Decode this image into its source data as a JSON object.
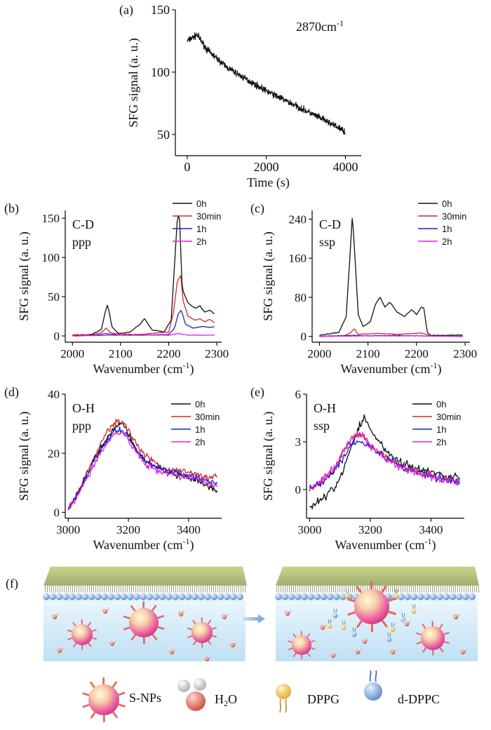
{
  "panels": [
    {
      "id": "a",
      "label": "(a)",
      "type": "line",
      "annotation": "2870cm-1",
      "xlabel": "Time (s)",
      "ylabel": "SFG signal (a. u.)",
      "xlim": [
        -300,
        4400
      ],
      "ylim": [
        33,
        150
      ],
      "xticks": [
        0,
        2000,
        4000
      ],
      "yticks": [
        50,
        100,
        150
      ],
      "series": [
        {
          "color": "#111111",
          "x": [
            0,
            250,
            500,
            1000,
            1500,
            2000,
            2500,
            3000,
            3500,
            3900,
            4000
          ],
          "y": [
            125,
            130,
            118,
            104,
            94,
            85,
            77,
            69,
            61,
            54,
            52
          ]
        }
      ]
    },
    {
      "id": "b",
      "label": "(b)",
      "type": "line",
      "annotation": [
        "C-D",
        "ppp"
      ],
      "xlabel": "Wavenumber (cm-1)",
      "ylabel": "SFG signal (a. u.)",
      "xlim": [
        1985,
        2310
      ],
      "ylim": [
        -8,
        160
      ],
      "xticks": [
        2000,
        2100,
        2200,
        2300
      ],
      "yticks": [
        0,
        50,
        100,
        150
      ],
      "series": [
        {
          "name": "0h",
          "color": "#111111",
          "x": [
            2000,
            2040,
            2060,
            2068,
            2073,
            2082,
            2095,
            2120,
            2140,
            2150,
            2165,
            2190,
            2205,
            2212,
            2218,
            2222,
            2228,
            2240,
            2255,
            2265,
            2275,
            2285,
            2295
          ],
          "y": [
            1,
            2,
            8,
            30,
            40,
            12,
            3,
            5,
            15,
            22,
            8,
            5,
            20,
            90,
            150,
            157,
            60,
            42,
            35,
            38,
            30,
            33,
            28
          ]
        },
        {
          "name": "30min",
          "color": "#d62728",
          "x": [
            2000,
            2040,
            2060,
            2070,
            2080,
            2100,
            2140,
            2200,
            2210,
            2218,
            2225,
            2230,
            2240,
            2255,
            2265,
            2275,
            2285,
            2295
          ],
          "y": [
            1,
            1,
            4,
            10,
            4,
            2,
            2,
            5,
            30,
            70,
            77,
            45,
            25,
            20,
            22,
            18,
            21,
            17
          ]
        },
        {
          "name": "1h",
          "color": "#1f1fd0",
          "x": [
            2000,
            2050,
            2070,
            2100,
            2150,
            2200,
            2212,
            2220,
            2226,
            2235,
            2250,
            2270,
            2285,
            2295
          ],
          "y": [
            0,
            1,
            3,
            1,
            1,
            2,
            10,
            28,
            33,
            15,
            10,
            12,
            11,
            12
          ]
        },
        {
          "name": "2h",
          "color": "#e020e0",
          "x": [
            2000,
            2100,
            2200,
            2220,
            2240,
            2295
          ],
          "y": [
            0,
            1,
            1,
            3,
            1,
            1
          ]
        }
      ]
    },
    {
      "id": "c",
      "label": "(c)",
      "type": "line",
      "annotation": [
        "C-D",
        "ssp"
      ],
      "xlabel": "Wavenumber (cm-1)",
      "ylabel": "SFG signal (a. u.)",
      "xlim": [
        1985,
        2310
      ],
      "ylim": [
        -12,
        258
      ],
      "xticks": [
        2000,
        2100,
        2200,
        2300
      ],
      "yticks": [
        0,
        80,
        160,
        240
      ],
      "series": [
        {
          "name": "0h",
          "color": "#111111",
          "x": [
            2000,
            2040,
            2055,
            2062,
            2068,
            2073,
            2080,
            2090,
            2105,
            2115,
            2125,
            2135,
            2145,
            2160,
            2175,
            2190,
            2200,
            2210,
            2215,
            2222,
            2230,
            2260,
            2295
          ],
          "y": [
            2,
            8,
            40,
            150,
            250,
            165,
            45,
            20,
            30,
            65,
            80,
            60,
            70,
            50,
            40,
            55,
            45,
            60,
            58,
            8,
            2,
            2,
            3
          ]
        },
        {
          "name": "30min",
          "color": "#d62728",
          "x": [
            2000,
            2050,
            2065,
            2072,
            2080,
            2120,
            2160,
            2210,
            2230,
            2295
          ],
          "y": [
            0,
            1,
            8,
            16,
            4,
            6,
            4,
            7,
            1,
            0
          ]
        },
        {
          "name": "1h",
          "color": "#1f1fd0",
          "x": [
            2000,
            2070,
            2100,
            2150,
            2200,
            2295
          ],
          "y": [
            0,
            2,
            1,
            2,
            1,
            0
          ]
        },
        {
          "name": "2h",
          "color": "#e020e0",
          "x": [
            2000,
            2100,
            2200,
            2295
          ],
          "y": [
            0,
            1,
            1,
            0
          ]
        }
      ]
    },
    {
      "id": "d",
      "label": "(d)",
      "type": "line",
      "annotation": [
        "O-H",
        "ppp"
      ],
      "xlabel": "Wavenumber (cm-1)",
      "ylabel": "SFG signal (a. u.)",
      "xlim": [
        2990,
        3510
      ],
      "ylim": [
        -2,
        40
      ],
      "xticks": [
        3000,
        3200,
        3400
      ],
      "yticks": [
        0,
        20,
        40
      ],
      "series": [
        {
          "name": "0h",
          "color": "#111111",
          "x": [
            3000,
            3040,
            3080,
            3120,
            3150,
            3170,
            3190,
            3220,
            3260,
            3300,
            3340,
            3380,
            3420,
            3460,
            3495
          ],
          "y": [
            1,
            8,
            17,
            24,
            28,
            30,
            29,
            22,
            17,
            15,
            13,
            12,
            11,
            9,
            7
          ]
        },
        {
          "name": "30min",
          "color": "#d62728",
          "x": [
            3000,
            3040,
            3080,
            3120,
            3150,
            3170,
            3190,
            3220,
            3260,
            3300,
            3340,
            3380,
            3420,
            3460,
            3495
          ],
          "y": [
            1,
            8,
            17,
            26,
            30,
            31,
            30,
            24,
            19,
            16,
            14,
            14,
            13,
            12,
            12
          ]
        },
        {
          "name": "1h",
          "color": "#1f1fd0",
          "x": [
            3000,
            3040,
            3080,
            3120,
            3150,
            3170,
            3190,
            3220,
            3260,
            3300,
            3340,
            3380,
            3420,
            3460,
            3495
          ],
          "y": [
            1,
            8,
            16,
            23,
            27,
            28,
            27,
            22,
            17,
            15,
            14,
            13,
            12,
            11,
            10
          ]
        },
        {
          "name": "2h",
          "color": "#e020e0",
          "x": [
            3000,
            3040,
            3080,
            3120,
            3150,
            3170,
            3190,
            3220,
            3260,
            3300,
            3340,
            3380,
            3420,
            3460,
            3495
          ],
          "y": [
            1,
            7,
            15,
            22,
            26,
            27,
            26,
            21,
            16,
            14,
            13,
            12,
            12,
            10,
            9
          ]
        }
      ]
    },
    {
      "id": "e",
      "label": "(e)",
      "type": "line",
      "annotation": [
        "O-H",
        "ssp"
      ],
      "xlabel": "Wavenumber (cm-1)",
      "ylabel": "SFG signal (a. u.)",
      "xlim": [
        2990,
        3510
      ],
      "ylim": [
        -1.8,
        6
      ],
      "xticks": [
        3000,
        3200,
        3400
      ],
      "yticks": [
        0,
        3,
        6
      ],
      "series": [
        {
          "name": "0h",
          "color": "#111111",
          "x": [
            3000,
            3040,
            3080,
            3110,
            3140,
            3160,
            3180,
            3200,
            3230,
            3260,
            3300,
            3340,
            3380,
            3420,
            3460,
            3495
          ],
          "y": [
            -1.1,
            -0.6,
            0,
            1.2,
            2.8,
            3.8,
            4.5,
            3.8,
            3.0,
            2.3,
            1.7,
            1.4,
            1.2,
            1.0,
            0.8,
            0.8
          ]
        },
        {
          "name": "30min",
          "color": "#d62728",
          "x": [
            3000,
            3040,
            3080,
            3110,
            3140,
            3160,
            3180,
            3200,
            3230,
            3260,
            3300,
            3340,
            3380,
            3420,
            3460,
            3495
          ],
          "y": [
            0,
            0.5,
            1.2,
            2.3,
            3.2,
            3.4,
            3.2,
            2.8,
            2.3,
            1.9,
            1.5,
            1.2,
            1.0,
            0.8,
            0.6,
            0.5
          ]
        },
        {
          "name": "1h",
          "color": "#1f1fd0",
          "x": [
            3000,
            3040,
            3080,
            3110,
            3140,
            3160,
            3180,
            3200,
            3230,
            3260,
            3300,
            3340,
            3380,
            3420,
            3460,
            3495
          ],
          "y": [
            0,
            0.5,
            1.1,
            2.0,
            2.9,
            3.1,
            3.0,
            2.7,
            2.3,
            1.9,
            1.5,
            1.2,
            1.0,
            0.8,
            0.6,
            0.5
          ]
        },
        {
          "name": "2h",
          "color": "#e020e0",
          "x": [
            3000,
            3040,
            3080,
            3110,
            3140,
            3160,
            3180,
            3200,
            3230,
            3260,
            3300,
            3340,
            3380,
            3420,
            3460,
            3495
          ],
          "y": [
            0,
            0.6,
            1.3,
            2.4,
            3.3,
            3.5,
            3.2,
            2.8,
            2.3,
            1.8,
            1.4,
            1.1,
            0.9,
            0.7,
            0.5,
            0.4
          ]
        }
      ]
    }
  ],
  "chart_data": [
    {
      "type": "line",
      "title": "",
      "annotation": "2870cm-1",
      "xlabel": "Time (s)",
      "ylabel": "SFG signal (a. u.)",
      "xlim": [
        -300,
        4400
      ],
      "ylim": [
        33,
        150
      ],
      "series": [
        {
          "x": [
            0,
            250,
            500,
            1000,
            1500,
            2000,
            2500,
            3000,
            3500,
            3900,
            4000
          ],
          "y": [
            125,
            130,
            118,
            104,
            94,
            85,
            77,
            69,
            61,
            54,
            52
          ]
        }
      ]
    },
    {
      "type": "line",
      "title": "",
      "annotation": "C-D ppp",
      "xlabel": "Wavenumber (cm-1)",
      "ylabel": "SFG signal (a. u.)",
      "xlim": [
        1985,
        2310
      ],
      "ylim": [
        -8,
        160
      ],
      "legend": "top-right",
      "series": [
        {
          "name": "0h",
          "x": [
            2000,
            2073,
            2150,
            2222,
            2295
          ],
          "y": [
            1,
            40,
            22,
            157,
            28
          ]
        },
        {
          "name": "30min",
          "x": [
            2000,
            2070,
            2225,
            2295
          ],
          "y": [
            1,
            10,
            77,
            17
          ]
        },
        {
          "name": "1h",
          "x": [
            2000,
            2226,
            2295
          ],
          "y": [
            0,
            33,
            12
          ]
        },
        {
          "name": "2h",
          "x": [
            2000,
            2220,
            2295
          ],
          "y": [
            0,
            3,
            1
          ]
        }
      ]
    },
    {
      "type": "line",
      "title": "",
      "annotation": "C-D ssp",
      "xlabel": "Wavenumber (cm-1)",
      "ylabel": "SFG signal (a. u.)",
      "xlim": [
        1985,
        2310
      ],
      "ylim": [
        -12,
        258
      ],
      "legend": "top-right",
      "series": [
        {
          "name": "0h",
          "x": [
            2000,
            2068,
            2125,
            2210,
            2295
          ],
          "y": [
            2,
            250,
            80,
            60,
            3
          ]
        },
        {
          "name": "30min",
          "x": [
            2000,
            2072,
            2295
          ],
          "y": [
            0,
            16,
            0
          ]
        },
        {
          "name": "1h",
          "x": [
            2000,
            2070,
            2295
          ],
          "y": [
            0,
            2,
            0
          ]
        },
        {
          "name": "2h",
          "x": [
            2000,
            2295
          ],
          "y": [
            0,
            0
          ]
        }
      ]
    },
    {
      "type": "line",
      "title": "",
      "annotation": "O-H ppp",
      "xlabel": "Wavenumber (cm-1)",
      "ylabel": "SFG signal (a. u.)",
      "xlim": [
        2990,
        3510
      ],
      "ylim": [
        -2,
        40
      ],
      "legend": "top-right",
      "series": [
        {
          "name": "0h",
          "x": [
            3000,
            3170,
            3495
          ],
          "y": [
            1,
            30,
            7
          ]
        },
        {
          "name": "30min",
          "x": [
            3000,
            3170,
            3495
          ],
          "y": [
            1,
            31,
            12
          ]
        },
        {
          "name": "1h",
          "x": [
            3000,
            3170,
            3495
          ],
          "y": [
            1,
            28,
            10
          ]
        },
        {
          "name": "2h",
          "x": [
            3000,
            3170,
            3495
          ],
          "y": [
            1,
            27,
            9
          ]
        }
      ]
    },
    {
      "type": "line",
      "title": "",
      "annotation": "O-H ssp",
      "xlabel": "Wavenumber (cm-1)",
      "ylabel": "SFG signal (a. u.)",
      "xlim": [
        2990,
        3510
      ],
      "ylim": [
        -1.8,
        6
      ],
      "legend": "top-right",
      "series": [
        {
          "name": "0h",
          "x": [
            3000,
            3180,
            3495
          ],
          "y": [
            -1.1,
            4.5,
            0.8
          ]
        },
        {
          "name": "30min",
          "x": [
            3000,
            3160,
            3495
          ],
          "y": [
            0,
            3.4,
            0.5
          ]
        },
        {
          "name": "1h",
          "x": [
            3000,
            3160,
            3495
          ],
          "y": [
            0,
            3.1,
            0.5
          ]
        },
        {
          "name": "2h",
          "x": [
            3000,
            3160,
            3495
          ],
          "y": [
            0,
            3.5,
            0.4
          ]
        }
      ]
    }
  ],
  "illustration": {
    "label": "(f)",
    "legend": [
      {
        "name": "S-NPs",
        "icon": "nanoparticle-icon"
      },
      {
        "name": "H2O",
        "icon": "water-molecule-icon"
      },
      {
        "name": "DPPG",
        "icon": "dppg-lipid-icon"
      },
      {
        "name": "d-DPPC",
        "icon": "d-dppc-lipid-icon"
      }
    ]
  }
}
